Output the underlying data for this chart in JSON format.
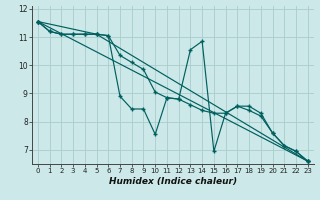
{
  "background_color": "#cce8e8",
  "grid_color": "#aacccc",
  "line_color": "#005f5f",
  "xlabel": "Humidex (Indice chaleur)",
  "xlim": [
    -0.5,
    23.5
  ],
  "ylim": [
    6.5,
    12.1
  ],
  "yticks": [
    7,
    8,
    9,
    10,
    11,
    12
  ],
  "xticks": [
    0,
    1,
    2,
    3,
    4,
    5,
    6,
    7,
    8,
    9,
    10,
    11,
    12,
    13,
    14,
    15,
    16,
    17,
    18,
    19,
    20,
    21,
    22,
    23
  ],
  "line_zigzag": {
    "x": [
      0,
      1,
      2,
      3,
      4,
      5,
      6,
      7,
      8,
      9,
      10,
      11,
      12,
      13,
      14,
      15,
      16,
      17,
      18,
      19,
      20,
      21,
      22,
      23
    ],
    "y": [
      11.55,
      11.2,
      11.1,
      11.1,
      11.1,
      11.1,
      11.05,
      8.9,
      8.45,
      8.45,
      7.55,
      8.85,
      8.8,
      10.55,
      10.85,
      6.95,
      8.3,
      8.55,
      8.55,
      8.3,
      7.6,
      7.15,
      6.95,
      6.6
    ]
  },
  "line_smooth": {
    "x": [
      0,
      1,
      2,
      3,
      4,
      5,
      6,
      7,
      8,
      9,
      10,
      11,
      12,
      13,
      14,
      15,
      16,
      17,
      18,
      19,
      20,
      21,
      22,
      23
    ],
    "y": [
      11.55,
      11.2,
      11.1,
      11.1,
      11.1,
      11.1,
      11.05,
      10.35,
      10.1,
      9.85,
      9.05,
      8.85,
      8.8,
      8.6,
      8.4,
      8.3,
      8.3,
      8.55,
      8.4,
      8.2,
      7.6,
      7.15,
      6.95,
      6.6
    ]
  },
  "line_straight1": {
    "x": [
      0,
      23
    ],
    "y": [
      11.55,
      6.6
    ]
  },
  "line_straight2": {
    "x": [
      0,
      5,
      23
    ],
    "y": [
      11.55,
      11.1,
      6.6
    ]
  }
}
